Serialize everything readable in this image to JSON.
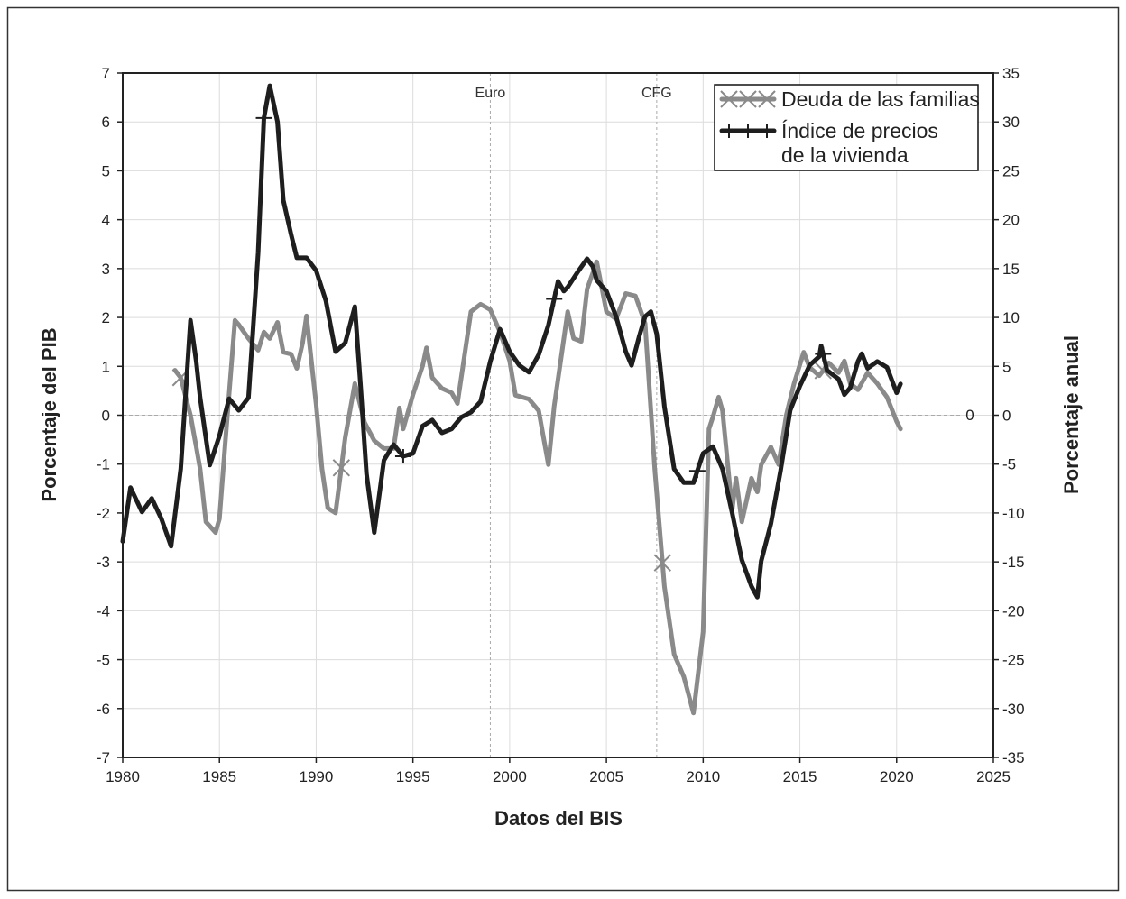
{
  "chart_data": {
    "type": "line",
    "title": "",
    "xlabel": "Datos del BIS",
    "ylabel_left": "Porcentaje del PIB",
    "ylabel_right": "Porcentaje anual",
    "xlim": [
      1980,
      2025
    ],
    "ylim_left": [
      -7,
      7
    ],
    "ylim_right": [
      -35,
      35
    ],
    "x_ticks": [
      "1980",
      "1985",
      "1990",
      "1995",
      "2000",
      "2005",
      "2010",
      "2015",
      "2020",
      "2025"
    ],
    "y_ticks_left": [
      "7",
      "6",
      "5",
      "4",
      "3",
      "2",
      "1",
      "0",
      "-1",
      "-2",
      "-3",
      "-4",
      "-5",
      "-6",
      "-7"
    ],
    "y_ticks_right": [
      "35",
      "30",
      "25",
      "20",
      "15",
      "10",
      "5",
      "0",
      "-5",
      "-10",
      "-15",
      "-20",
      "-25",
      "-30",
      "-35"
    ],
    "grid": true,
    "legend_position": "top-right",
    "zero_label": "0",
    "events": [
      {
        "label": "Euro",
        "x": 1999.0
      },
      {
        "label": "CFG",
        "x": 2007.6
      }
    ],
    "series": [
      {
        "name": "Deuda de las familias",
        "axis": "left",
        "color": "#8a8a8a",
        "marker": "x",
        "marker_x": [
          1983.0,
          1991.3,
          2007.9,
          2016.2
        ],
        "x": [
          1982.7,
          1983.0,
          1983.5,
          1983.8,
          1984.0,
          1984.3,
          1984.8,
          1985.0,
          1985.3,
          1985.8,
          1986.0,
          1986.5,
          1987.0,
          1987.3,
          1987.6,
          1988.0,
          1988.3,
          1988.7,
          1989.0,
          1989.3,
          1989.5,
          1990.0,
          1990.3,
          1990.6,
          1991.0,
          1991.5,
          1992.0,
          1992.5,
          1993.0,
          1993.5,
          1994.0,
          1994.3,
          1994.5,
          1995.0,
          1995.5,
          1995.7,
          1996.0,
          1996.5,
          1997.0,
          1997.3,
          1998.0,
          1998.5,
          1999.0,
          1999.5,
          2000.0,
          2000.3,
          2001.0,
          2001.5,
          2002.0,
          2002.3,
          2003.0,
          2003.3,
          2003.7,
          2004.0,
          2004.5,
          2005.0,
          2005.5,
          2006.0,
          2006.5,
          2007.0,
          2007.5,
          2008.0,
          2008.5,
          2009.0,
          2009.5,
          2010.0,
          2010.3,
          2010.5,
          2010.8,
          2011.0,
          2011.5,
          2011.7,
          2012.0,
          2012.5,
          2012.8,
          2013.0,
          2013.5,
          2013.9,
          2014.3,
          2014.7,
          2015.2,
          2015.5,
          2016.0,
          2016.5,
          2017.0,
          2017.3,
          2017.6,
          2018.0,
          2018.5,
          2019.0,
          2019.5,
          2020.0,
          2020.2
        ],
        "values": [
          0.92,
          0.77,
          0.0,
          -0.65,
          -1.1,
          -2.18,
          -2.4,
          -2.12,
          -0.55,
          1.94,
          1.85,
          1.57,
          1.33,
          1.7,
          1.57,
          1.9,
          1.29,
          1.25,
          0.96,
          1.48,
          2.03,
          0.22,
          -1.1,
          -1.9,
          -2.0,
          -0.46,
          0.65,
          -0.15,
          -0.52,
          -0.68,
          -0.68,
          0.15,
          -0.28,
          0.42,
          1.01,
          1.38,
          0.77,
          0.55,
          0.46,
          0.24,
          2.12,
          2.27,
          2.16,
          1.7,
          1.11,
          0.41,
          0.33,
          0.09,
          -1.01,
          0.18,
          2.12,
          1.57,
          1.51,
          2.58,
          3.14,
          2.12,
          1.97,
          2.49,
          2.44,
          1.88,
          -1.1,
          -3.5,
          -4.89,
          -5.35,
          -6.09,
          -4.43,
          -0.28,
          -0.04,
          0.37,
          0.09,
          -1.94,
          -1.29,
          -2.18,
          -1.29,
          -1.57,
          -1.01,
          -0.65,
          -1.01,
          0.0,
          0.65,
          1.29,
          0.98,
          0.81,
          1.07,
          0.87,
          1.11,
          0.65,
          0.52,
          0.87,
          0.65,
          0.37,
          -0.13,
          -0.28
        ]
      },
      {
        "name": "Índice de precios de la vivienda",
        "name_lines": [
          "Índice de precios",
          "de la vivienda"
        ],
        "axis": "right",
        "color": "#1e1e1e",
        "marker": "plus",
        "marker_x": [
          1987.3,
          1994.5,
          2002.3,
          2009.7,
          2016.2
        ],
        "x": [
          1980.0,
          1980.4,
          1981.0,
          1981.5,
          1982.0,
          1982.5,
          1983.0,
          1983.5,
          1983.8,
          1984.0,
          1984.5,
          1985.0,
          1985.5,
          1986.0,
          1986.5,
          1987.0,
          1987.3,
          1987.6,
          1988.0,
          1988.3,
          1988.7,
          1989.0,
          1989.5,
          1990.0,
          1990.5,
          1991.0,
          1991.5,
          1992.0,
          1992.3,
          1992.6,
          1993.0,
          1993.5,
          1994.0,
          1994.5,
          1995.0,
          1995.5,
          1996.0,
          1996.5,
          1997.0,
          1997.5,
          1998.0,
          1998.5,
          1999.0,
          1999.5,
          2000.0,
          2000.5,
          2001.0,
          2001.5,
          2002.0,
          2002.5,
          2002.8,
          2003.0,
          2003.5,
          2004.0,
          2004.3,
          2004.5,
          2005.0,
          2005.5,
          2006.0,
          2006.3,
          2006.7,
          2007.0,
          2007.3,
          2007.6,
          2008.0,
          2008.5,
          2009.0,
          2009.5,
          2010.0,
          2010.5,
          2011.0,
          2011.5,
          2012.0,
          2012.5,
          2012.8,
          2013.0,
          2013.5,
          2014.0,
          2014.5,
          2015.0,
          2015.5,
          2016.0,
          2016.1,
          2016.4,
          2017.0,
          2017.3,
          2017.6,
          2018.0,
          2018.2,
          2018.5,
          2019.0,
          2019.5,
          2020.0,
          2020.2
        ],
        "values": [
          -12.9,
          -7.4,
          -9.9,
          -8.5,
          -10.6,
          -13.4,
          -5.5,
          9.7,
          5.5,
          1.8,
          -5.1,
          -2.1,
          1.7,
          0.5,
          1.8,
          16.6,
          30.4,
          33.7,
          30.0,
          22.0,
          18.5,
          16.1,
          16.1,
          14.8,
          11.7,
          6.5,
          7.4,
          11.1,
          2.8,
          -6.0,
          -12.0,
          -4.6,
          -3.0,
          -4.2,
          -3.9,
          -1.1,
          -0.5,
          -1.8,
          -1.4,
          -0.2,
          0.3,
          1.4,
          5.5,
          8.8,
          6.5,
          5.1,
          4.4,
          6.2,
          9.2,
          13.7,
          12.7,
          13.1,
          14.6,
          16.0,
          15.2,
          13.8,
          12.7,
          10.1,
          6.5,
          5.1,
          8.1,
          10.1,
          10.6,
          8.3,
          0.9,
          -5.5,
          -6.9,
          -6.9,
          -3.9,
          -3.2,
          -5.5,
          -10.0,
          -14.8,
          -17.5,
          -18.6,
          -14.9,
          -11.1,
          -5.7,
          0.5,
          3.0,
          5.1,
          6.0,
          7.1,
          4.6,
          3.7,
          2.1,
          2.8,
          5.5,
          6.3,
          4.8,
          5.5,
          4.9,
          2.3,
          3.2
        ]
      }
    ]
  }
}
